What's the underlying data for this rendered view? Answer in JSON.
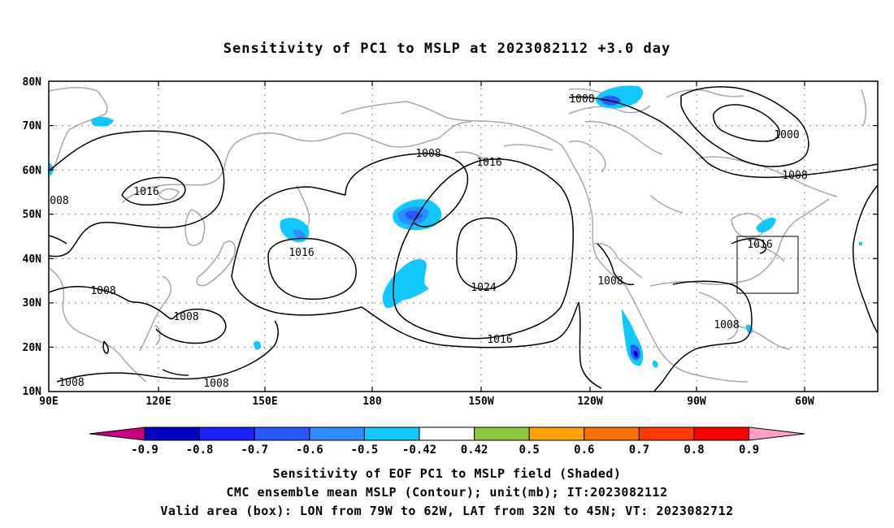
{
  "title": "Sensitivity of PC1 to MSLP at 2023082112 +3.0 day",
  "axes": {
    "lat_labels": [
      "80N",
      "70N",
      "60N",
      "50N",
      "40N",
      "30N",
      "20N",
      "10N"
    ],
    "lon_labels": [
      "90E",
      "120E",
      "150E",
      "180",
      "150W",
      "120W",
      "90W",
      "60W"
    ]
  },
  "contour_labels": [
    "1008",
    "1000",
    "1008",
    "1008",
    "1016",
    "1016",
    "008",
    "1016",
    "1024",
    "1016",
    "1008",
    "1008",
    "1016",
    "1008",
    "1008",
    "1008",
    "1008"
  ],
  "colorbar": {
    "labels": [
      "-0.9",
      "-0.8",
      "-0.7",
      "-0.6",
      "-0.5",
      "-0.42",
      "0.42",
      "0.5",
      "0.6",
      "0.7",
      "0.8",
      "0.9"
    ],
    "colors": [
      "#c8007f",
      "#0000c0",
      "#1a20ff",
      "#2858ff",
      "#2d8cff",
      "#10c8ff",
      "#ffffff",
      "#8cc83c",
      "#ffa000",
      "#ff7000",
      "#ff3c00",
      "#ff0000",
      "#ffa0c8"
    ]
  },
  "footer": {
    "line1": "Sensitivity of EOF PC1 to MSLP field (Shaded)",
    "line2": "CMC ensemble mean MSLP (Contour); unit(mb); IT:2023082112",
    "line3": "Valid area (box): LON from 79W to 62W, LAT from 32N to 45N; VT: 2023082712"
  }
}
